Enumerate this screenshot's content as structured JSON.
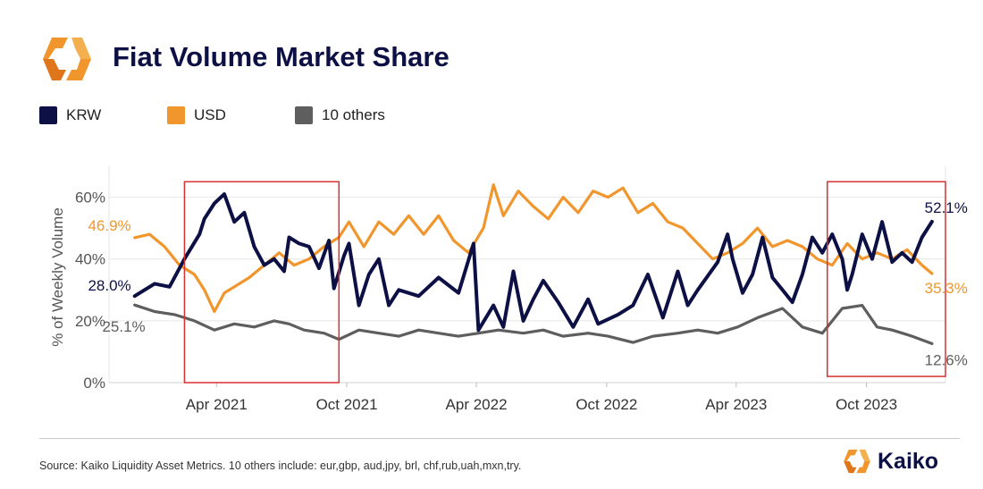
{
  "header": {
    "title": "Fiat Volume Market Share"
  },
  "legend": [
    {
      "label": "KRW",
      "color": "#0d1044"
    },
    {
      "label": "USD",
      "color": "#f0962c"
    },
    {
      "label": "10 others",
      "color": "#5e5e5e"
    }
  ],
  "footer": {
    "source": "Source: Kaiko Liquidity Asset Metrics. 10 others include: eur,gbp, aud,jpy, brl, chf,rub,uah,mxn,try.",
    "brand": "Kaiko"
  },
  "colors": {
    "krw": "#0d1044",
    "usd": "#f0962c",
    "others": "#5e5e5e",
    "highlight_box": "#d93030",
    "brand_orange": "#f0962c"
  },
  "chart_data": {
    "type": "line",
    "ylabel": "% of Weekly Volume",
    "ylim": [
      0,
      70
    ],
    "xlim": [
      "2020-11-01",
      "2024-01-20"
    ],
    "x_ticks": [
      {
        "date": "2021-04-01",
        "label": "Apr 2021"
      },
      {
        "date": "2021-10-01",
        "label": "Oct 2021"
      },
      {
        "date": "2022-04-01",
        "label": "Apr 2022"
      },
      {
        "date": "2022-10-01",
        "label": "Oct 2022"
      },
      {
        "date": "2023-04-01",
        "label": "Apr 2023"
      },
      {
        "date": "2023-10-01",
        "label": "Oct 2023"
      }
    ],
    "y_ticks": [
      {
        "value": 0,
        "label": "0%"
      },
      {
        "value": 20,
        "label": "20%"
      },
      {
        "value": 40,
        "label": "40%"
      },
      {
        "value": 60,
        "label": "60%"
      }
    ],
    "grid": true,
    "series": [
      {
        "name": "KRW",
        "color": "#0d1044",
        "points": [
          [
            "2020-12-07",
            28.0
          ],
          [
            "2021-01-04",
            32.0
          ],
          [
            "2021-01-25",
            31.0
          ],
          [
            "2021-02-15",
            40.0
          ],
          [
            "2021-03-08",
            48.0
          ],
          [
            "2021-03-15",
            53.0
          ],
          [
            "2021-03-29",
            58.0
          ],
          [
            "2021-04-12",
            61.0
          ],
          [
            "2021-04-26",
            52.0
          ],
          [
            "2021-05-10",
            55.0
          ],
          [
            "2021-05-24",
            44.0
          ],
          [
            "2021-06-07",
            38.0
          ],
          [
            "2021-06-21",
            40.0
          ],
          [
            "2021-07-05",
            36.0
          ],
          [
            "2021-07-12",
            47.0
          ],
          [
            "2021-07-26",
            45.0
          ],
          [
            "2021-08-09",
            44.0
          ],
          [
            "2021-08-23",
            37.0
          ],
          [
            "2021-09-06",
            46.0
          ],
          [
            "2021-09-13",
            30.5
          ],
          [
            "2021-09-27",
            41.0
          ],
          [
            "2021-10-04",
            45.0
          ],
          [
            "2021-10-18",
            25.0
          ],
          [
            "2021-11-01",
            35.0
          ],
          [
            "2021-11-15",
            40.0
          ],
          [
            "2021-11-29",
            25.0
          ],
          [
            "2021-12-13",
            30.0
          ],
          [
            "2022-01-10",
            28.0
          ],
          [
            "2022-02-07",
            34.0
          ],
          [
            "2022-03-07",
            29.0
          ],
          [
            "2022-03-28",
            45.0
          ],
          [
            "2022-04-04",
            17.0
          ],
          [
            "2022-04-25",
            25.0
          ],
          [
            "2022-05-09",
            18.0
          ],
          [
            "2022-05-23",
            36.0
          ],
          [
            "2022-06-06",
            20.0
          ],
          [
            "2022-06-20",
            27.0
          ],
          [
            "2022-07-04",
            33.0
          ],
          [
            "2022-07-25",
            26.0
          ],
          [
            "2022-08-15",
            18.0
          ],
          [
            "2022-09-05",
            27.0
          ],
          [
            "2022-09-19",
            19.0
          ],
          [
            "2022-10-17",
            22.0
          ],
          [
            "2022-11-07",
            25.0
          ],
          [
            "2022-11-28",
            35.0
          ],
          [
            "2022-12-19",
            21.0
          ],
          [
            "2023-01-09",
            36.0
          ],
          [
            "2023-01-23",
            25.0
          ],
          [
            "2023-02-06",
            30.0
          ],
          [
            "2023-03-06",
            39.0
          ],
          [
            "2023-03-20",
            48.0
          ],
          [
            "2023-03-27",
            40.0
          ],
          [
            "2023-04-10",
            29.0
          ],
          [
            "2023-04-24",
            35.0
          ],
          [
            "2023-05-08",
            47.0
          ],
          [
            "2023-05-22",
            34.0
          ],
          [
            "2023-06-05",
            30.0
          ],
          [
            "2023-06-19",
            26.0
          ],
          [
            "2023-07-03",
            35.0
          ],
          [
            "2023-07-17",
            47.0
          ],
          [
            "2023-07-31",
            42.0
          ],
          [
            "2023-08-14",
            48.0
          ],
          [
            "2023-08-28",
            40.0
          ],
          [
            "2023-09-04",
            30.0
          ],
          [
            "2023-09-11",
            35.0
          ],
          [
            "2023-09-25",
            48.0
          ],
          [
            "2023-10-09",
            40.0
          ],
          [
            "2023-10-23",
            52.0
          ],
          [
            "2023-11-06",
            39.0
          ],
          [
            "2023-11-20",
            42.0
          ],
          [
            "2023-12-04",
            39.0
          ],
          [
            "2023-12-18",
            47.0
          ],
          [
            "2024-01-01",
            52.1
          ]
        ]
      },
      {
        "name": "USD",
        "color": "#f0962c",
        "points": [
          [
            "2020-12-07",
            46.9
          ],
          [
            "2020-12-28",
            48.0
          ],
          [
            "2021-01-18",
            44.0
          ],
          [
            "2021-02-08",
            38.0
          ],
          [
            "2021-03-01",
            35.0
          ],
          [
            "2021-03-15",
            30.0
          ],
          [
            "2021-03-29",
            23.0
          ],
          [
            "2021-04-12",
            29.0
          ],
          [
            "2021-05-03",
            32.0
          ],
          [
            "2021-05-17",
            34.0
          ],
          [
            "2021-06-07",
            38.0
          ],
          [
            "2021-06-28",
            42.0
          ],
          [
            "2021-07-19",
            38.0
          ],
          [
            "2021-08-09",
            40.0
          ],
          [
            "2021-08-30",
            44.0
          ],
          [
            "2021-09-20",
            47.0
          ],
          [
            "2021-10-04",
            52.0
          ],
          [
            "2021-10-25",
            44.0
          ],
          [
            "2021-11-15",
            52.0
          ],
          [
            "2021-12-06",
            48.0
          ],
          [
            "2021-12-27",
            54.0
          ],
          [
            "2022-01-17",
            48.0
          ],
          [
            "2022-02-07",
            54.0
          ],
          [
            "2022-02-28",
            46.0
          ],
          [
            "2022-03-21",
            42.0
          ],
          [
            "2022-04-11",
            50.0
          ],
          [
            "2022-04-25",
            64.0
          ],
          [
            "2022-05-09",
            54.0
          ],
          [
            "2022-05-30",
            62.0
          ],
          [
            "2022-06-20",
            57.0
          ],
          [
            "2022-07-11",
            53.0
          ],
          [
            "2022-08-01",
            60.0
          ],
          [
            "2022-08-22",
            55.0
          ],
          [
            "2022-09-12",
            62.0
          ],
          [
            "2022-10-03",
            60.0
          ],
          [
            "2022-10-24",
            63.0
          ],
          [
            "2022-11-14",
            55.0
          ],
          [
            "2022-12-05",
            58.0
          ],
          [
            "2022-12-26",
            52.0
          ],
          [
            "2023-01-16",
            50.0
          ],
          [
            "2023-02-06",
            45.0
          ],
          [
            "2023-02-27",
            40.0
          ],
          [
            "2023-03-20",
            42.0
          ],
          [
            "2023-04-10",
            45.0
          ],
          [
            "2023-05-01",
            50.0
          ],
          [
            "2023-05-22",
            44.0
          ],
          [
            "2023-06-12",
            46.0
          ],
          [
            "2023-07-03",
            44.0
          ],
          [
            "2023-07-24",
            40.0
          ],
          [
            "2023-08-14",
            38.0
          ],
          [
            "2023-09-04",
            45.0
          ],
          [
            "2023-09-25",
            40.0
          ],
          [
            "2023-10-16",
            42.0
          ],
          [
            "2023-11-06",
            40.0
          ],
          [
            "2023-11-27",
            43.0
          ],
          [
            "2023-12-18",
            38.0
          ],
          [
            "2024-01-01",
            35.3
          ]
        ]
      },
      {
        "name": "10 others",
        "color": "#5e5e5e",
        "points": [
          [
            "2020-12-07",
            25.1
          ],
          [
            "2021-01-04",
            23.0
          ],
          [
            "2021-02-01",
            22.0
          ],
          [
            "2021-03-01",
            20.0
          ],
          [
            "2021-03-29",
            17.0
          ],
          [
            "2021-04-26",
            19.0
          ],
          [
            "2021-05-24",
            18.0
          ],
          [
            "2021-06-21",
            20.0
          ],
          [
            "2021-07-12",
            19.0
          ],
          [
            "2021-08-02",
            17.0
          ],
          [
            "2021-08-30",
            16.0
          ],
          [
            "2021-09-20",
            14.0
          ],
          [
            "2021-10-18",
            17.0
          ],
          [
            "2021-11-15",
            16.0
          ],
          [
            "2021-12-13",
            15.0
          ],
          [
            "2022-01-10",
            17.0
          ],
          [
            "2022-02-07",
            16.0
          ],
          [
            "2022-03-07",
            15.0
          ],
          [
            "2022-04-04",
            16.0
          ],
          [
            "2022-05-02",
            17.0
          ],
          [
            "2022-06-06",
            16.0
          ],
          [
            "2022-07-04",
            17.0
          ],
          [
            "2022-08-01",
            15.0
          ],
          [
            "2022-09-05",
            16.0
          ],
          [
            "2022-10-03",
            15.0
          ],
          [
            "2022-11-07",
            13.0
          ],
          [
            "2022-12-05",
            15.0
          ],
          [
            "2023-01-09",
            16.0
          ],
          [
            "2023-02-06",
            17.0
          ],
          [
            "2023-03-06",
            16.0
          ],
          [
            "2023-04-03",
            18.0
          ],
          [
            "2023-05-01",
            21.0
          ],
          [
            "2023-06-05",
            24.0
          ],
          [
            "2023-07-03",
            18.0
          ],
          [
            "2023-07-31",
            16.0
          ],
          [
            "2023-08-28",
            24.0
          ],
          [
            "2023-09-25",
            25.0
          ],
          [
            "2023-10-16",
            18.0
          ],
          [
            "2023-11-06",
            17.0
          ],
          [
            "2023-12-04",
            15.0
          ],
          [
            "2024-01-01",
            12.6
          ]
        ]
      }
    ],
    "annotations": {
      "krw_start": "28.0%",
      "usd_start": "46.9%",
      "others_start": "25.1%",
      "krw_end": "52.1%",
      "usd_end": "35.3%",
      "others_end": "12.6%"
    },
    "highlight_boxes": [
      {
        "from": "2021-02-15",
        "to": "2021-09-20",
        "ymin": 0,
        "ymax": 65
      },
      {
        "from": "2023-08-07",
        "to": "2024-01-20",
        "ymin": 2,
        "ymax": 65
      }
    ]
  }
}
